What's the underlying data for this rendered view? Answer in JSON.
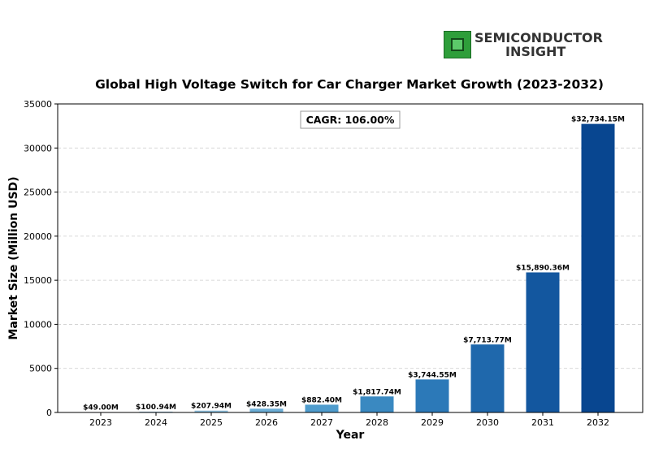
{
  "logo": {
    "line1": "SEMICONDUCTOR",
    "line2": "INSIGHT",
    "icon": "chip-icon"
  },
  "chart_data": {
    "type": "bar",
    "title": "Global High Voltage Switch for Car Charger Market Growth (2023-2032)",
    "xlabel": "Year",
    "ylabel": "Market Size (Million USD)",
    "annotation": "CAGR: 106.00%",
    "categories": [
      "2023",
      "2024",
      "2025",
      "2026",
      "2027",
      "2028",
      "2029",
      "2030",
      "2031",
      "2032"
    ],
    "values": [
      49.0,
      100.94,
      207.94,
      428.35,
      882.4,
      1817.74,
      3744.55,
      7713.77,
      15890.36,
      32734.15
    ],
    "value_labels": [
      "$49.00M",
      "$100.94M",
      "$207.94M",
      "$428.35M",
      "$882.40M",
      "$1,817.74M",
      "$3,744.55M",
      "$7,713.77M",
      "$15,890.36M",
      "$32,734.15M"
    ],
    "bar_colors": [
      "#c6dbef",
      "#a9cde6",
      "#8cbfdd",
      "#6caed6",
      "#4f9ccd",
      "#3a89c1",
      "#2c79b8",
      "#1f68ac",
      "#13579f",
      "#084690"
    ],
    "ylim": [
      0,
      35000
    ],
    "yticks": [
      0,
      5000,
      10000,
      15000,
      20000,
      25000,
      30000,
      35000
    ],
    "grid": "horizontal dashed",
    "legend": "none"
  }
}
